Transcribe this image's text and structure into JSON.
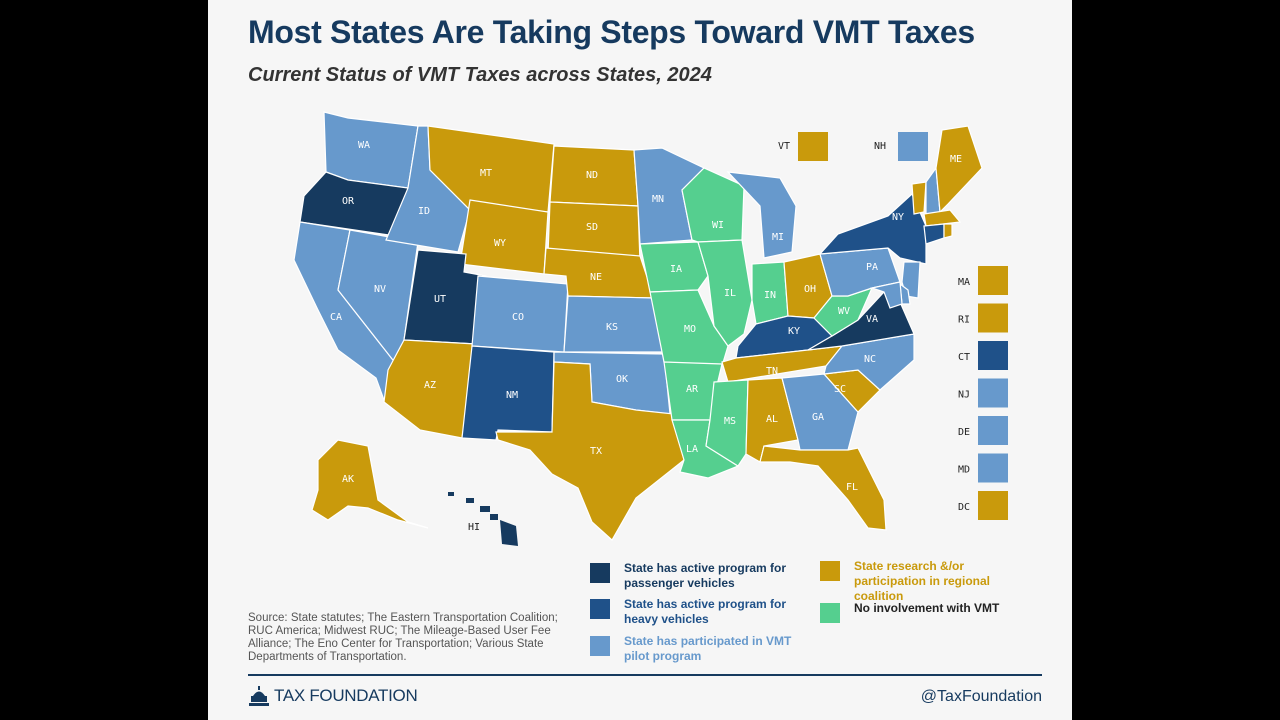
{
  "title": "Most States Are Taking Steps Toward VMT Taxes",
  "subtitle": "Current Status of VMT Taxes across States, 2024",
  "colors": {
    "passenger": "#163a5f",
    "heavy": "#1f5189",
    "pilot": "#6799cc",
    "research": "#c99a0c",
    "none": "#55cf8f"
  },
  "states": [
    {
      "abbr": "WA",
      "status": "pilot"
    },
    {
      "abbr": "OR",
      "status": "passenger"
    },
    {
      "abbr": "CA",
      "status": "pilot"
    },
    {
      "abbr": "NV",
      "status": "pilot"
    },
    {
      "abbr": "ID",
      "status": "pilot"
    },
    {
      "abbr": "MT",
      "status": "research"
    },
    {
      "abbr": "WY",
      "status": "research"
    },
    {
      "abbr": "UT",
      "status": "passenger"
    },
    {
      "abbr": "AZ",
      "status": "research"
    },
    {
      "abbr": "CO",
      "status": "pilot"
    },
    {
      "abbr": "NM",
      "status": "heavy"
    },
    {
      "abbr": "ND",
      "status": "research"
    },
    {
      "abbr": "SD",
      "status": "research"
    },
    {
      "abbr": "NE",
      "status": "research"
    },
    {
      "abbr": "KS",
      "status": "pilot"
    },
    {
      "abbr": "OK",
      "status": "pilot"
    },
    {
      "abbr": "TX",
      "status": "research"
    },
    {
      "abbr": "MN",
      "status": "pilot"
    },
    {
      "abbr": "IA",
      "status": "none"
    },
    {
      "abbr": "MO",
      "status": "none"
    },
    {
      "abbr": "AR",
      "status": "none"
    },
    {
      "abbr": "LA",
      "status": "none"
    },
    {
      "abbr": "WI",
      "status": "none"
    },
    {
      "abbr": "IL",
      "status": "none"
    },
    {
      "abbr": "MI",
      "status": "pilot"
    },
    {
      "abbr": "IN",
      "status": "none"
    },
    {
      "abbr": "OH",
      "status": "research"
    },
    {
      "abbr": "KY",
      "status": "heavy"
    },
    {
      "abbr": "TN",
      "status": "research"
    },
    {
      "abbr": "MS",
      "status": "none"
    },
    {
      "abbr": "AL",
      "status": "research"
    },
    {
      "abbr": "GA",
      "status": "pilot"
    },
    {
      "abbr": "FL",
      "status": "research"
    },
    {
      "abbr": "SC",
      "status": "research"
    },
    {
      "abbr": "NC",
      "status": "pilot"
    },
    {
      "abbr": "VA",
      "status": "passenger"
    },
    {
      "abbr": "WV",
      "status": "none"
    },
    {
      "abbr": "PA",
      "status": "pilot"
    },
    {
      "abbr": "NY",
      "status": "heavy"
    },
    {
      "abbr": "ME",
      "status": "research"
    },
    {
      "abbr": "AK",
      "status": "research"
    },
    {
      "abbr": "HI",
      "status": "passenger"
    }
  ],
  "callouts_top": [
    {
      "abbr": "VT",
      "status": "research"
    },
    {
      "abbr": "NH",
      "status": "pilot"
    }
  ],
  "callouts_side": [
    {
      "abbr": "MA",
      "status": "research"
    },
    {
      "abbr": "RI",
      "status": "research"
    },
    {
      "abbr": "CT",
      "status": "heavy"
    },
    {
      "abbr": "NJ",
      "status": "pilot"
    },
    {
      "abbr": "DE",
      "status": "pilot"
    },
    {
      "abbr": "MD",
      "status": "pilot"
    },
    {
      "abbr": "DC",
      "status": "research"
    }
  ],
  "legend": [
    {
      "status": "passenger",
      "label": "State has active program for passenger vehicles"
    },
    {
      "status": "heavy",
      "label": "State has active program for heavy vehicles"
    },
    {
      "status": "pilot",
      "label": "State has participated in VMT pilot program"
    },
    {
      "status": "research",
      "label": "State research &/or participation in regional coalition"
    },
    {
      "status": "none",
      "label": "No involvement with VMT"
    }
  ],
  "source": "Source:  State statutes; The Eastern Transportation Coalition; RUC America; Midwest RUC; The Mileage-Based User Fee Alliance; The Eno Center for Transportation; Various State Departments of Transportation.",
  "brand": "TAX FOUNDATION",
  "handle": "@TaxFoundation"
}
